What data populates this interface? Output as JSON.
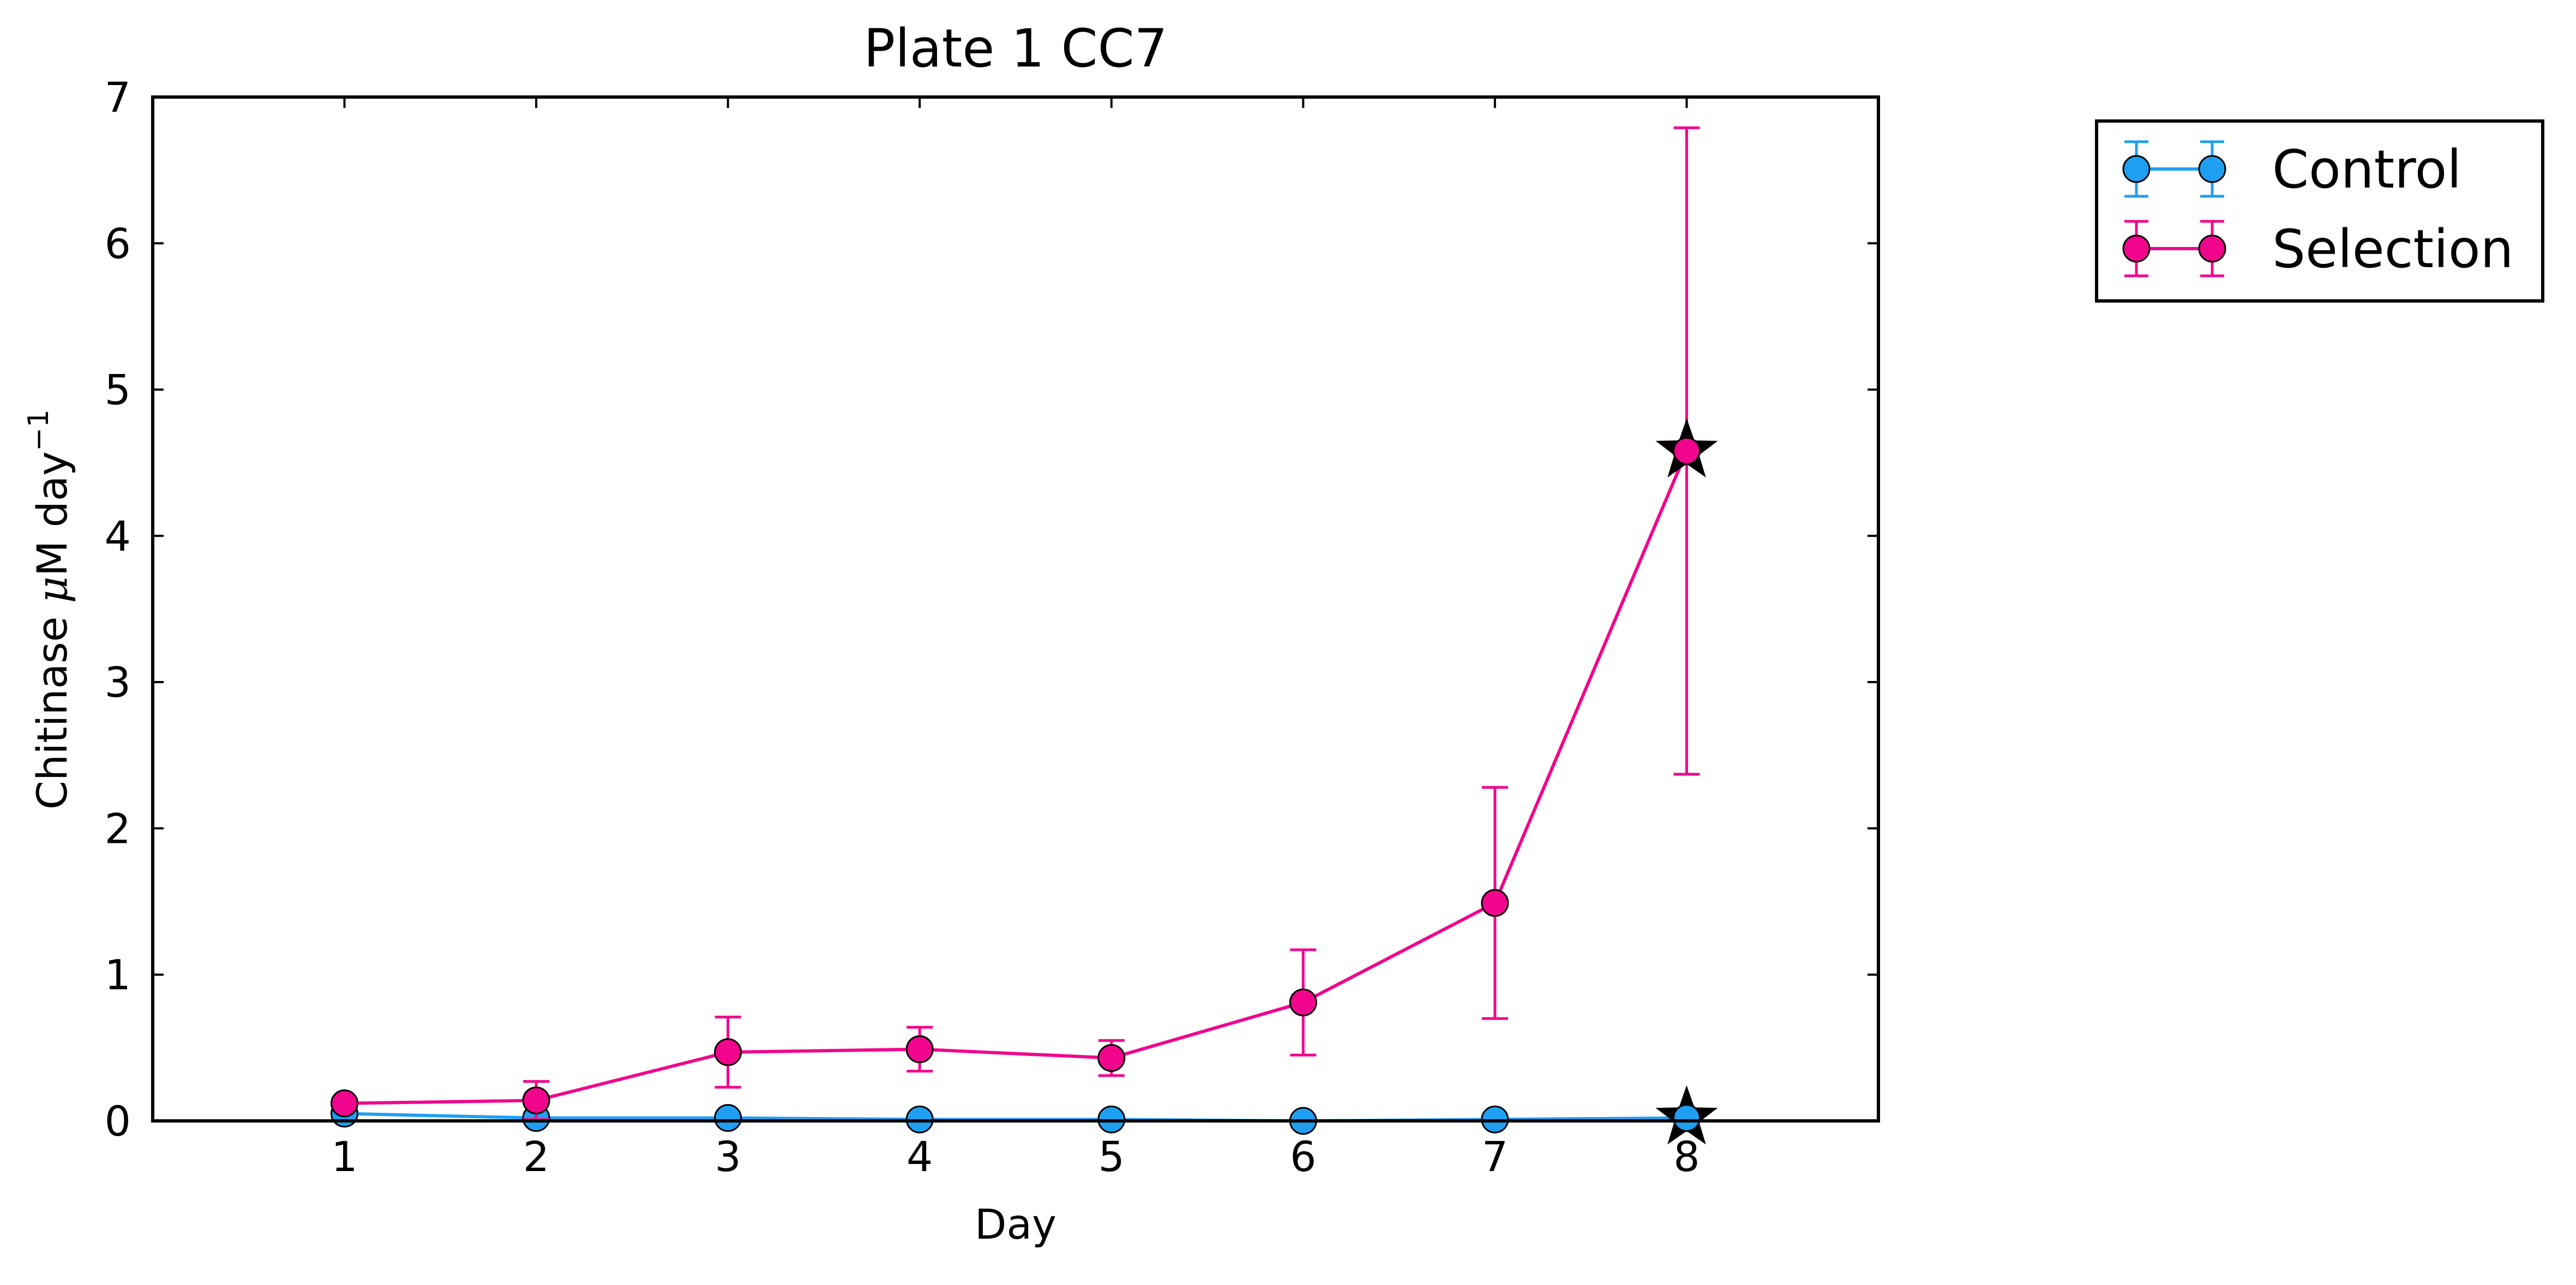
{
  "chart_data": {
    "type": "line",
    "title": "Plate 1 CC7",
    "xlabel": "Day",
    "ylabel": {
      "prefix": "Chitinase ",
      "mu": "μ",
      "unit": "M day",
      "exponent": "−1"
    },
    "xlim": [
      0,
      9
    ],
    "ylim": [
      0,
      7
    ],
    "xticks": [
      1,
      2,
      3,
      4,
      5,
      6,
      7,
      8
    ],
    "yticks": [
      0,
      1,
      2,
      3,
      4,
      5,
      6,
      7
    ],
    "legend_position": "outside-top-right",
    "series": [
      {
        "name": "Control",
        "color": "#1f9ff2",
        "x": [
          1,
          2,
          3,
          4,
          5,
          6,
          7,
          8
        ],
        "y": [
          0.05,
          0.02,
          0.02,
          0.01,
          0.01,
          0.0,
          0.01,
          0.02
        ],
        "yerr": [
          0.01,
          0.01,
          0.01,
          0.01,
          0.01,
          0.01,
          0.01,
          0.01
        ]
      },
      {
        "name": "Selection",
        "color": "#f2058d",
        "x": [
          1,
          2,
          3,
          4,
          5,
          6,
          7,
          8
        ],
        "y": [
          0.12,
          0.14,
          0.47,
          0.49,
          0.43,
          0.81,
          1.49,
          4.58
        ],
        "yerr": [
          0.03,
          0.13,
          0.24,
          0.15,
          0.12,
          0.36,
          0.79,
          2.21
        ]
      }
    ],
    "significance_markers": [
      {
        "series": "Selection",
        "x": 8,
        "y": 4.58,
        "symbol": "star"
      },
      {
        "series": "Control",
        "x": 8,
        "y": 0.02,
        "symbol": "star"
      }
    ]
  }
}
